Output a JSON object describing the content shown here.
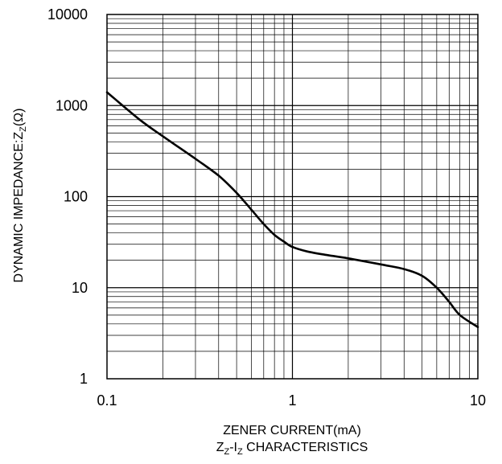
{
  "chart_data": {
    "type": "line",
    "xscale": "log",
    "yscale": "log",
    "xlim": [
      0.1,
      10
    ],
    "ylim": [
      1,
      10000
    ],
    "grid": true,
    "xticks": [
      {
        "value": 0.1,
        "label": "0.1"
      },
      {
        "value": 1,
        "label": "1"
      },
      {
        "value": 10,
        "label": "10"
      }
    ],
    "yticks": [
      {
        "value": 1,
        "label": "1"
      },
      {
        "value": 10,
        "label": "10"
      },
      {
        "value": 100,
        "label": "100"
      },
      {
        "value": 1000,
        "label": "1000"
      },
      {
        "value": 10000,
        "label": "10000"
      }
    ],
    "xlabel": "ZENER CURRENT(mA)",
    "ylabel": {
      "main": "DYNAMIC IMPEDANCE:Z",
      "sub": "Z",
      "tail": "(Ω)"
    },
    "caption": {
      "a": "Z",
      "a_sub": "Z",
      "mid": "-I",
      "b_sub": "Z",
      "tail": " CHARACTERISTICS"
    },
    "series": [
      {
        "x": [
          0.1,
          0.15,
          0.2,
          0.3,
          0.4,
          0.5,
          0.6,
          0.7,
          0.8,
          0.9,
          1.0,
          1.2,
          1.5,
          2.0,
          3.0,
          4.0,
          5.0,
          6.0,
          7.0,
          8.0,
          10.0
        ],
        "y": [
          1400,
          700,
          460,
          260,
          170,
          110,
          72,
          50,
          38,
          32,
          28,
          25,
          23,
          21,
          18,
          16,
          13.5,
          10,
          7,
          5,
          3.7
        ]
      }
    ]
  }
}
